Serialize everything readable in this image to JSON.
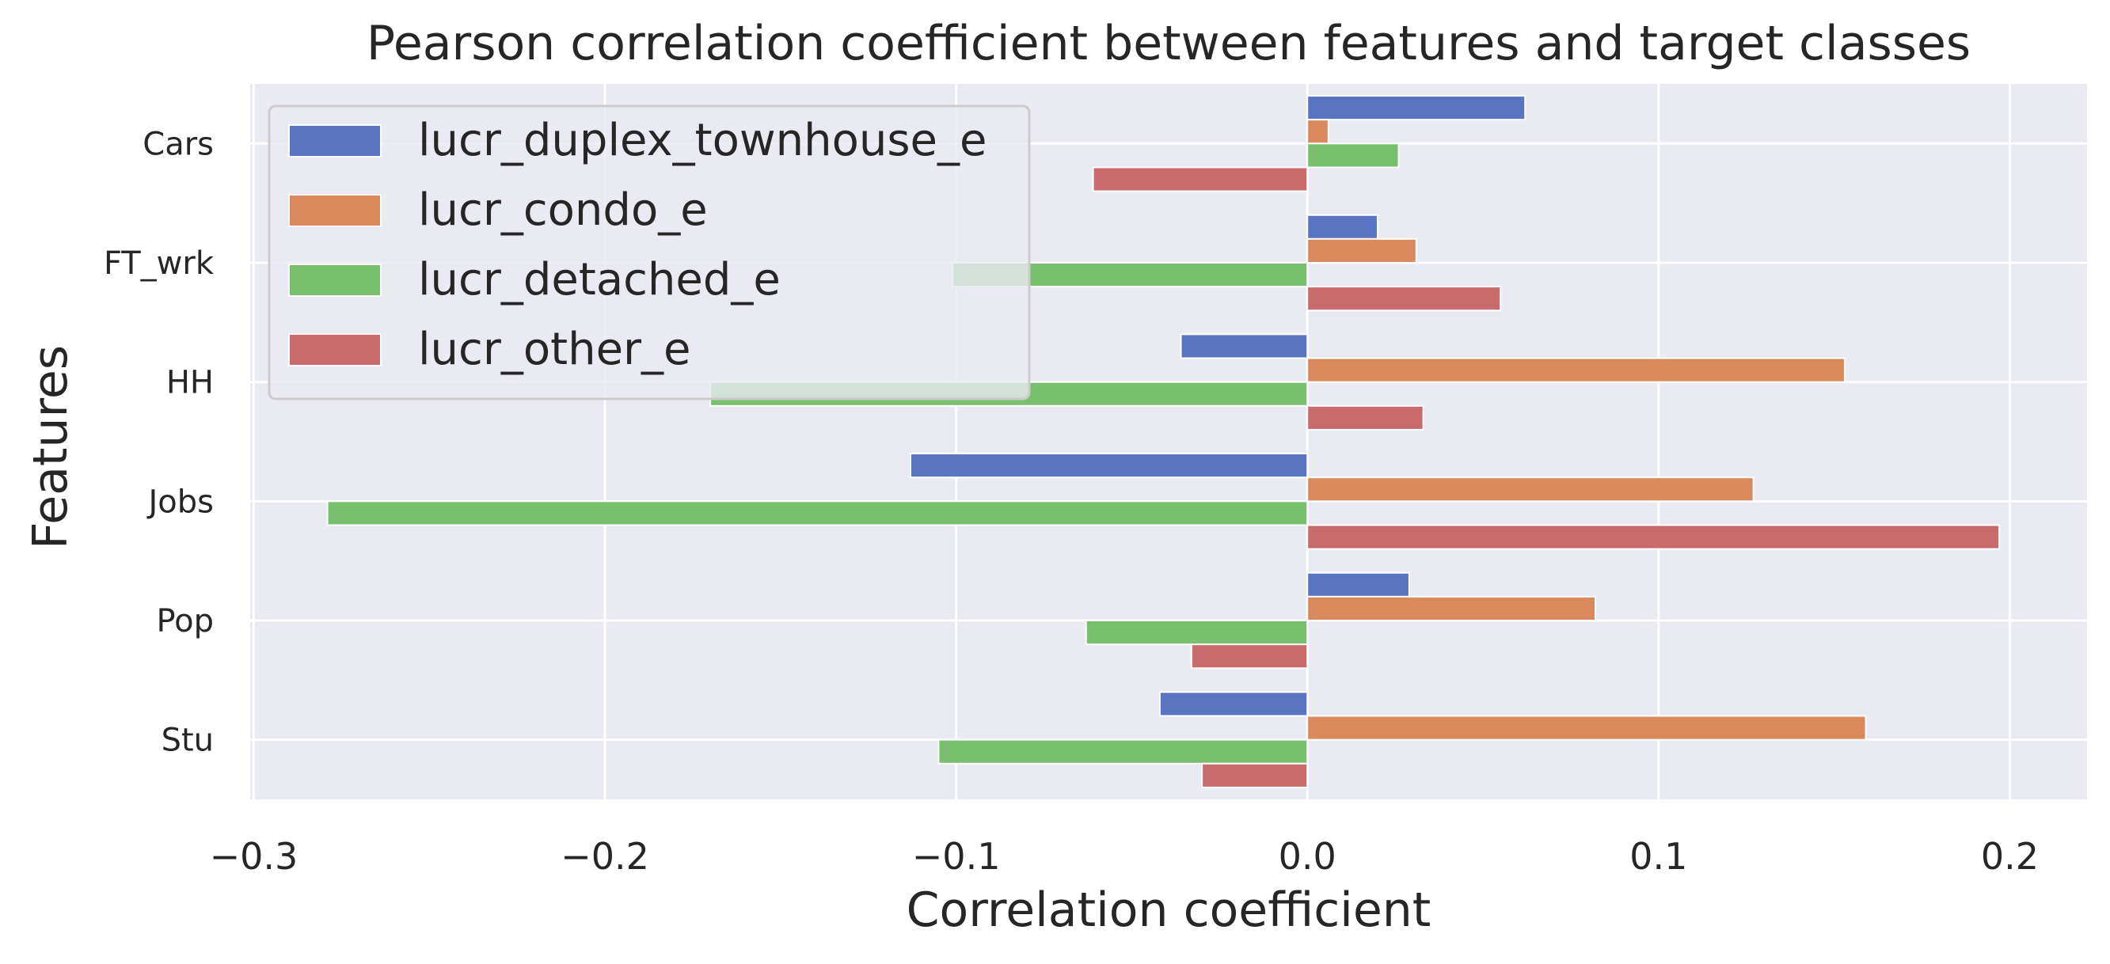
{
  "chart_data": {
    "type": "bar",
    "orientation": "horizontal",
    "title": "Pearson correlation coefficient between features and target classes",
    "xlabel": "Correlation coefficient",
    "ylabel": "Features",
    "categories": [
      "Cars",
      "FT_wrk",
      "HH",
      "Jobs",
      "Pop",
      "Stu"
    ],
    "series": [
      {
        "name": "lucr_duplex_townhouse_e",
        "color": "#5975c1",
        "values": [
          0.062,
          0.02,
          -0.036,
          -0.113,
          0.029,
          -0.042
        ]
      },
      {
        "name": "lucr_condo_e",
        "color": "#d9895c",
        "values": [
          0.006,
          0.031,
          0.153,
          0.127,
          0.082,
          0.159
        ]
      },
      {
        "name": "lucr_detached_e",
        "color": "#78c06e",
        "values": [
          0.026,
          -0.101,
          -0.17,
          -0.279,
          -0.063,
          -0.105
        ]
      },
      {
        "name": "lucr_other_e",
        "color": "#c96a6c",
        "values": [
          -0.061,
          0.055,
          0.033,
          0.197,
          -0.033,
          -0.03
        ]
      }
    ],
    "xlim": [
      -0.301,
      0.222
    ],
    "xticks": [
      "−0.3",
      "−0.2",
      "−0.1",
      "0.0",
      "0.1",
      "0.2"
    ],
    "xtick_values": [
      -0.3,
      -0.2,
      -0.1,
      0.0,
      0.1,
      0.2
    ],
    "grid": true,
    "legend_position": "top-left",
    "background_color": "#eaeaf2",
    "grid_color": "#ffffff"
  }
}
